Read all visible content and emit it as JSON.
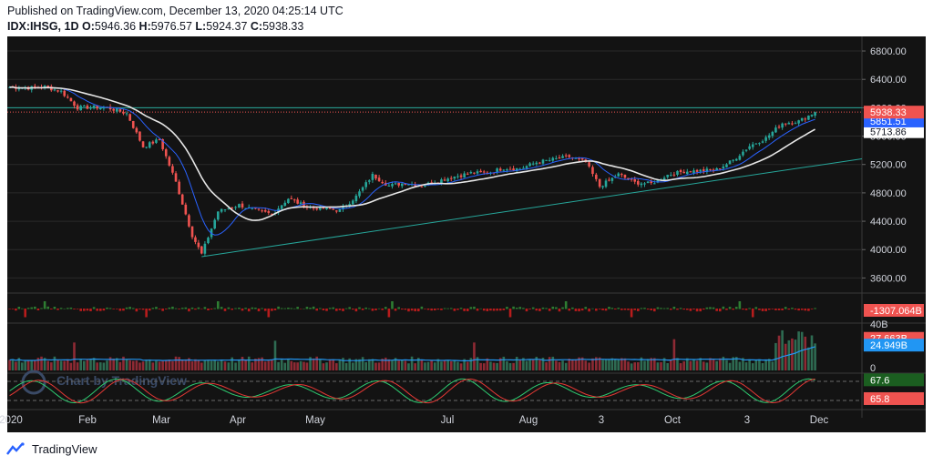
{
  "header": {
    "published": "Published on TradingView.com, December 13, 2020 04:25:14 UTC",
    "symbol": "IDX:IHSG, 1D",
    "o_label": "O:",
    "o": "5946.36",
    "h_label": "H:",
    "h": "5976.57",
    "l_label": "L:",
    "l": "5924.37",
    "c_label": "C:",
    "c": "5938.33"
  },
  "watermark": "Chart by TradingView",
  "footer": {
    "brand": "TradingView"
  },
  "colors": {
    "background": "#131313",
    "up": "#26a69a",
    "down": "#ef5350",
    "grid": "#2a2a2a",
    "price_line": "#ef5350",
    "ma_fast": "#2962ff",
    "ma_slow": "#e6e6e6",
    "trendline": "#26a69a",
    "axis_text": "#d1d4dc"
  },
  "chart_data": {
    "type": "candlestick",
    "y_ticks": [
      "6800.00",
      "6400.00",
      "6000.00",
      "5600.00",
      "5200.00",
      "4800.00",
      "4400.00",
      "4000.00",
      "3600.00"
    ],
    "price_ylim": [
      3400,
      6980
    ],
    "x_ticks": [
      "2020",
      "Feb",
      "Mar",
      "Apr",
      "May",
      "Jul",
      "Aug",
      "3",
      "Oct",
      "3",
      "Dec"
    ],
    "price_labels": {
      "last": "5938.33",
      "ma_fast": "5851.51",
      "ma_slow": "5713.86"
    },
    "price_path": [
      [
        "2020-01-02",
        6290
      ],
      [
        "2020-01-10",
        6280
      ],
      [
        "2020-01-17",
        6295
      ],
      [
        "2020-01-24",
        6230
      ],
      [
        "2020-01-31",
        6000
      ],
      [
        "2020-02-07",
        6010
      ],
      [
        "2020-02-14",
        5990
      ],
      [
        "2020-02-21",
        5920
      ],
      [
        "2020-02-28",
        5450
      ],
      [
        "2020-03-06",
        5550
      ],
      [
        "2020-03-13",
        4950
      ],
      [
        "2020-03-20",
        4200
      ],
      [
        "2020-03-24",
        3937
      ],
      [
        "2020-03-31",
        4540
      ],
      [
        "2020-04-09",
        4630
      ],
      [
        "2020-04-16",
        4550
      ],
      [
        "2020-04-23",
        4500
      ],
      [
        "2020-04-30",
        4720
      ],
      [
        "2020-05-08",
        4600
      ],
      [
        "2020-05-15",
        4580
      ],
      [
        "2020-05-22",
        4550
      ],
      [
        "2020-05-29",
        4750
      ],
      [
        "2020-06-05",
        5050
      ],
      [
        "2020-06-12",
        4900
      ],
      [
        "2020-06-19",
        4940
      ],
      [
        "2020-06-26",
        4900
      ],
      [
        "2020-07-03",
        4970
      ],
      [
        "2020-07-10",
        5030
      ],
      [
        "2020-07-17",
        5080
      ],
      [
        "2020-07-24",
        5080
      ],
      [
        "2020-07-31",
        5150
      ],
      [
        "2020-08-07",
        5140
      ],
      [
        "2020-08-14",
        5230
      ],
      [
        "2020-08-21",
        5270
      ],
      [
        "2020-08-28",
        5310
      ],
      [
        "2020-09-04",
        5230
      ],
      [
        "2020-09-10",
        4890
      ],
      [
        "2020-09-18",
        5060
      ],
      [
        "2020-09-25",
        4945
      ],
      [
        "2020-10-02",
        4930
      ],
      [
        "2020-10-09",
        5053
      ],
      [
        "2020-10-16",
        5103
      ],
      [
        "2020-10-23",
        5112
      ],
      [
        "2020-10-30",
        5128
      ],
      [
        "2020-11-06",
        5260
      ],
      [
        "2020-11-13",
        5462
      ],
      [
        "2020-11-20",
        5572
      ],
      [
        "2020-11-27",
        5783
      ],
      [
        "2020-12-04",
        5810
      ],
      [
        "2020-12-11",
        5938
      ]
    ],
    "trendline": [
      [
        "2020-03-24",
        3900
      ],
      [
        "2020-12-31",
        5280
      ]
    ],
    "resistance_level": 6000,
    "panels": [
      {
        "name": "flow",
        "last_label": "-1307.064B"
      },
      {
        "name": "volume",
        "axis_labels": [
          "40B",
          "0"
        ],
        "value_labels": [
          "27.663B",
          "24.949B"
        ],
        "ylim": [
          0,
          40
        ]
      },
      {
        "name": "oscillator",
        "value_labels": [
          "67.6",
          "65.8"
        ]
      }
    ]
  }
}
